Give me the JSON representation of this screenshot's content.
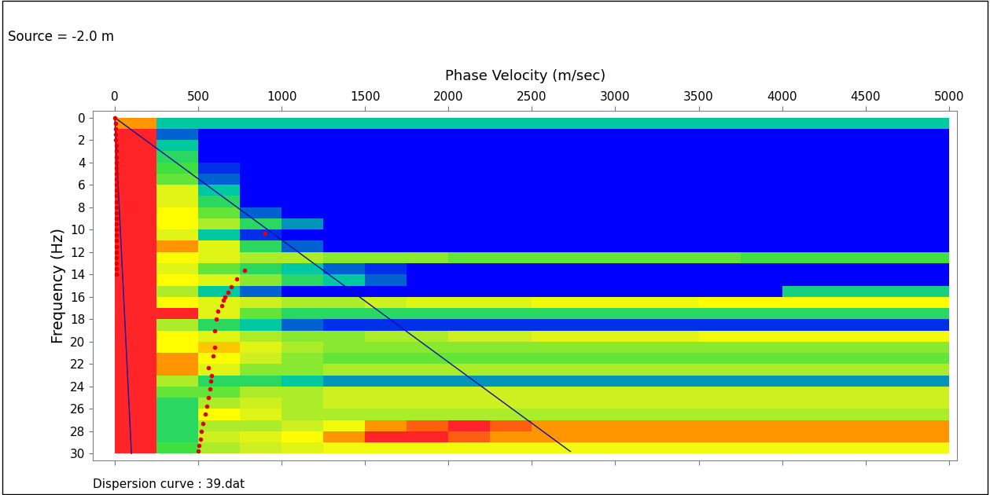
{
  "chart_data": {
    "type": "heatmap",
    "title": "Phase Velocity (m/sec)",
    "y_label": "Frequency (Hz)",
    "annotations": [
      "Source = -2.0 m",
      "Dispersion curve : 39.dat"
    ],
    "xlim": [
      -130,
      5050
    ],
    "ylim": [
      30.6,
      -0.6
    ],
    "xticks": [
      0,
      500,
      1000,
      1500,
      2000,
      2500,
      3000,
      3500,
      4000,
      4500,
      5000
    ],
    "yticks": [
      0,
      2,
      4,
      6,
      8,
      10,
      12,
      14,
      16,
      18,
      20,
      22,
      24,
      26,
      28,
      30
    ],
    "grid": false,
    "cell_x": [
      0,
      250,
      500,
      750,
      1000,
      1250,
      1500,
      1750,
      2000,
      2250,
      2500,
      2750,
      3000,
      3250,
      3500,
      3750,
      4000,
      4250,
      4500,
      4750,
      5000
    ],
    "cell_y": [
      0,
      1,
      2,
      3,
      4,
      5,
      6,
      7,
      8,
      9,
      10,
      11,
      12,
      13,
      14,
      15,
      16,
      17,
      18,
      19,
      20,
      21,
      22,
      23,
      24,
      25,
      26,
      27,
      28,
      29,
      30
    ],
    "cell_range": [
      0,
      1
    ],
    "cells": [
      [
        0.8,
        0.2,
        0.2,
        0.2,
        0.2,
        0.2,
        0.2,
        0.2,
        0.2,
        0.2,
        0.2,
        0.2,
        0.2,
        0.2,
        0.2,
        0.2,
        0.2,
        0.2,
        0.2,
        0.2
      ],
      [
        0.9,
        0.1,
        0,
        0,
        0,
        0,
        0,
        0,
        0,
        0,
        0,
        0,
        0,
        0,
        0,
        0,
        0,
        0,
        0,
        0
      ],
      [
        0.9,
        0.2,
        0,
        0,
        0,
        0,
        0,
        0,
        0,
        0,
        0,
        0,
        0,
        0,
        0,
        0,
        0,
        0,
        0,
        0
      ],
      [
        0.9,
        0.3,
        0,
        0,
        0,
        0,
        0,
        0,
        0,
        0,
        0,
        0,
        0,
        0,
        0,
        0,
        0,
        0,
        0,
        0
      ],
      [
        0.9,
        0.35,
        0.05,
        0,
        0,
        0,
        0,
        0,
        0,
        0,
        0,
        0,
        0,
        0,
        0,
        0,
        0,
        0,
        0,
        0
      ],
      [
        0.9,
        0.4,
        0.1,
        0,
        0,
        0,
        0,
        0,
        0,
        0,
        0,
        0,
        0,
        0,
        0,
        0,
        0,
        0,
        0,
        0
      ],
      [
        0.9,
        0.6,
        0.2,
        0,
        0,
        0,
        0,
        0,
        0,
        0,
        0,
        0,
        0,
        0,
        0,
        0,
        0,
        0,
        0,
        0
      ],
      [
        0.9,
        0.6,
        0.3,
        0,
        0,
        0,
        0,
        0,
        0,
        0,
        0,
        0,
        0,
        0,
        0,
        0,
        0,
        0,
        0,
        0
      ],
      [
        0.9,
        0.7,
        0.4,
        0.1,
        0,
        0,
        0,
        0,
        0,
        0,
        0,
        0,
        0,
        0,
        0,
        0,
        0,
        0,
        0,
        0
      ],
      [
        0.9,
        0.7,
        0.5,
        0.3,
        0.15,
        0,
        0,
        0,
        0,
        0,
        0,
        0,
        0,
        0,
        0,
        0,
        0,
        0,
        0,
        0
      ],
      [
        0.9,
        0.6,
        0.2,
        0.05,
        0,
        0,
        0,
        0,
        0,
        0,
        0,
        0,
        0,
        0,
        0,
        0,
        0,
        0,
        0,
        0
      ],
      [
        0.9,
        0.8,
        0.6,
        0.3,
        0.1,
        0,
        0,
        0,
        0,
        0,
        0,
        0,
        0,
        0,
        0,
        0,
        0,
        0,
        0,
        0
      ],
      [
        0.9,
        0.7,
        0.6,
        0.5,
        0.5,
        0.45,
        0.45,
        0.45,
        0.4,
        0.4,
        0.4,
        0.4,
        0.4,
        0.4,
        0.4,
        0.35,
        0.35,
        0.35,
        0.35,
        0.35
      ],
      [
        0.9,
        0.6,
        0.4,
        0.3,
        0.2,
        0.1,
        0.05,
        0,
        0,
        0,
        0,
        0,
        0,
        0,
        0,
        0,
        0,
        0,
        0,
        0
      ],
      [
        0.9,
        0.7,
        0.6,
        0.45,
        0.3,
        0.2,
        0.1,
        0,
        0,
        0,
        0,
        0,
        0,
        0,
        0,
        0,
        0,
        0,
        0,
        0
      ],
      [
        0.9,
        0.5,
        0.2,
        0.1,
        0,
        0,
        0,
        0,
        0,
        0,
        0,
        0,
        0,
        0,
        0,
        0,
        0.25,
        0.25,
        0.25,
        0.25
      ],
      [
        0.9,
        0.7,
        0.6,
        0.55,
        0.5,
        0.5,
        0.55,
        0.6,
        0.6,
        0.6,
        0.65,
        0.65,
        0.65,
        0.65,
        0.7,
        0.7,
        0.7,
        0.7,
        0.7,
        0.7
      ],
      [
        0.9,
        0.9,
        0.6,
        0.4,
        0.3,
        0.3,
        0.3,
        0.3,
        0.3,
        0.3,
        0.3,
        0.3,
        0.3,
        0.3,
        0.3,
        0.3,
        0.3,
        0.3,
        0.3,
        0.3
      ],
      [
        0.9,
        0.5,
        0.3,
        0.2,
        0.1,
        0.05,
        0.05,
        0.05,
        0.05,
        0.05,
        0.05,
        0.05,
        0.05,
        0.05,
        0.05,
        0.05,
        0.05,
        0.05,
        0.05,
        0.05
      ],
      [
        0.9,
        0.7,
        0.6,
        0.5,
        0.45,
        0.45,
        0.5,
        0.5,
        0.55,
        0.55,
        0.6,
        0.6,
        0.6,
        0.6,
        0.65,
        0.65,
        0.65,
        0.65,
        0.65,
        0.65
      ],
      [
        0.9,
        0.7,
        0.75,
        0.6,
        0.5,
        0.45,
        0.45,
        0.45,
        0.45,
        0.45,
        0.45,
        0.45,
        0.45,
        0.45,
        0.45,
        0.45,
        0.45,
        0.45,
        0.45,
        0.45
      ],
      [
        0.9,
        0.8,
        0.7,
        0.55,
        0.45,
        0.4,
        0.4,
        0.4,
        0.4,
        0.4,
        0.4,
        0.4,
        0.4,
        0.4,
        0.4,
        0.4,
        0.4,
        0.4,
        0.4,
        0.4
      ],
      [
        0.9,
        0.8,
        0.6,
        0.45,
        0.45,
        0.5,
        0.5,
        0.5,
        0.5,
        0.5,
        0.5,
        0.5,
        0.5,
        0.5,
        0.5,
        0.5,
        0.5,
        0.5,
        0.5,
        0.5
      ],
      [
        0.9,
        0.5,
        0.3,
        0.3,
        0.2,
        0.15,
        0.15,
        0.15,
        0.15,
        0.15,
        0.15,
        0.15,
        0.15,
        0.15,
        0.15,
        0.15,
        0.15,
        0.15,
        0.15,
        0.15
      ],
      [
        0.9,
        0.4,
        0.4,
        0.5,
        0.5,
        0.55,
        0.55,
        0.55,
        0.55,
        0.55,
        0.55,
        0.55,
        0.55,
        0.55,
        0.55,
        0.55,
        0.55,
        0.55,
        0.55,
        0.55
      ],
      [
        0.9,
        0.3,
        0.5,
        0.55,
        0.5,
        0.55,
        0.55,
        0.55,
        0.55,
        0.55,
        0.55,
        0.55,
        0.55,
        0.55,
        0.55,
        0.55,
        0.55,
        0.55,
        0.55,
        0.55
      ],
      [
        0.9,
        0.3,
        0.7,
        0.6,
        0.5,
        0.5,
        0.5,
        0.5,
        0.5,
        0.5,
        0.5,
        0.5,
        0.5,
        0.5,
        0.5,
        0.5,
        0.5,
        0.5,
        0.5,
        0.5
      ],
      [
        0.9,
        0.3,
        0.5,
        0.5,
        0.55,
        0.65,
        0.8,
        0.85,
        0.9,
        0.85,
        0.8,
        0.8,
        0.8,
        0.8,
        0.8,
        0.8,
        0.8,
        0.8,
        0.8,
        0.8
      ],
      [
        0.9,
        0.3,
        0.55,
        0.6,
        0.7,
        0.8,
        0.9,
        0.9,
        0.85,
        0.8,
        0.8,
        0.8,
        0.8,
        0.8,
        0.8,
        0.8,
        0.8,
        0.8,
        0.8,
        0.8
      ],
      [
        0.9,
        0.35,
        0.5,
        0.55,
        0.6,
        0.65,
        0.65,
        0.65,
        0.65,
        0.65,
        0.65,
        0.65,
        0.65,
        0.65,
        0.65,
        0.65,
        0.65,
        0.65,
        0.65,
        0.65
      ]
    ],
    "guide_lines": [
      {
        "velocity": [
          0,
          2730
        ],
        "frequency": [
          0,
          29.8
        ],
        "color": "#1010a0"
      },
      {
        "velocity": [
          0,
          100
        ],
        "frequency": [
          0,
          30
        ],
        "color": "#1010a0"
      }
    ],
    "dispersion_curve": {
      "color": "#e00000",
      "marker": "o",
      "velocity": [
        0,
        3,
        5,
        6,
        7,
        8,
        8,
        9,
        9,
        10,
        10,
        10,
        11,
        11,
        11,
        12,
        12,
        12,
        12,
        12,
        12,
        12,
        12,
        12,
        12,
        12,
        12,
        12,
        12,
        900,
        780,
        730,
        700,
        680,
        660,
        650,
        640,
        620,
        610,
        600,
        600,
        590,
        560,
        580,
        575,
        570,
        560,
        550,
        540,
        530,
        520,
        515,
        505,
        500
      ],
      "frequency": [
        0,
        0.5,
        1,
        1.5,
        2,
        2.5,
        3,
        3.5,
        4,
        4.5,
        5,
        5.5,
        6,
        6.5,
        7,
        7.5,
        8,
        8.5,
        9,
        9.5,
        10,
        10.5,
        11,
        11.5,
        12,
        12.5,
        13,
        13.5,
        14,
        10.3,
        13.6,
        14.4,
        15.1,
        15.6,
        16,
        16.3,
        16.8,
        17.3,
        18,
        19,
        20.5,
        21.3,
        22.3,
        23,
        23.5,
        24.2,
        25,
        25.8,
        26.5,
        27.3,
        28,
        28.7,
        29.3,
        29.8
      ]
    }
  }
}
